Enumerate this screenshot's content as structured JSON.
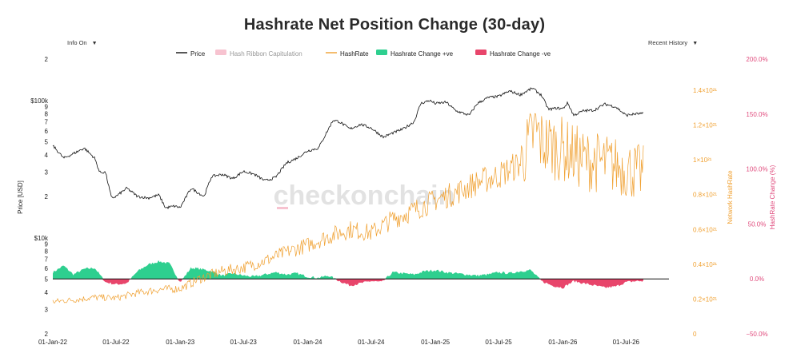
{
  "header": {
    "title": "Hashrate Net Position Change (30-day)",
    "info_label": "Info On",
    "history_label": "Recent History"
  },
  "watermark": "checkonchain",
  "colors": {
    "price": "#111111",
    "capitulation": "#f7c3d0",
    "hashrate": "#f0a030",
    "positive": "#2ecf8f",
    "negative": "#e8456b",
    "right_axis": "#e04a7c"
  },
  "chart_data": {
    "type": "line",
    "title": "Hashrate Net Position Change (30-day)",
    "legend": [
      {
        "name": "Price",
        "kind": "line",
        "color": "#111111"
      },
      {
        "name": "Hash Ribbon Capitulation",
        "kind": "box",
        "color": "#f7c3d0"
      },
      {
        "name": "HashRate",
        "kind": "line",
        "color": "#f0a030"
      },
      {
        "name": "Hashrate Change +ve",
        "kind": "box",
        "color": "#2ecf8f"
      },
      {
        "name": "Hashrate Change -ve",
        "kind": "box",
        "color": "#e8456b"
      }
    ],
    "legend_position": "top-center",
    "x_ticks": [
      "01-Jan-22",
      "01-Jul-22",
      "01-Jan-23",
      "01-Jul-23",
      "01-Jan-24",
      "01-Jul-24",
      "01-Jan-25",
      "01-Jul-25",
      "01-Jan-26",
      "01-Jul-26"
    ],
    "x_range": [
      "2022-01-01",
      "2026-09-30"
    ],
    "y_left": {
      "label": "Price [USD]",
      "scale": "log",
      "range": [
        2000,
        200000
      ],
      "ticks": [
        {
          "v": 2000,
          "t": "2"
        },
        {
          "v": 3000,
          "t": "3"
        },
        {
          "v": 4000,
          "t": "4"
        },
        {
          "v": 5000,
          "t": "5"
        },
        {
          "v": 6000,
          "t": "6"
        },
        {
          "v": 7000,
          "t": "7"
        },
        {
          "v": 8000,
          "t": "8"
        },
        {
          "v": 9000,
          "t": "9"
        },
        {
          "v": 10000,
          "t": "$10k"
        },
        {
          "v": 20000,
          "t": "2"
        },
        {
          "v": 30000,
          "t": "3"
        },
        {
          "v": 40000,
          "t": "4"
        },
        {
          "v": 50000,
          "t": "5"
        },
        {
          "v": 60000,
          "t": "6"
        },
        {
          "v": 70000,
          "t": "7"
        },
        {
          "v": 80000,
          "t": "8"
        },
        {
          "v": 90000,
          "t": "9"
        },
        {
          "v": 100000,
          "t": "$100k"
        },
        {
          "v": 200000,
          "t": "2"
        }
      ]
    },
    "y_hashrate": {
      "label": "Network HashRate",
      "range": [
        0,
        1.4e+21
      ],
      "ticks": [
        {
          "v": 0,
          "t": "0"
        },
        {
          "v": 2e+20,
          "t": "0.2×10²¹"
        },
        {
          "v": 4e+20,
          "t": "0.4×10²¹"
        },
        {
          "v": 6e+20,
          "t": "0.6×10²¹"
        },
        {
          "v": 8e+20,
          "t": "0.8×10²¹"
        },
        {
          "v": 1e+21,
          "t": "1×10²¹"
        },
        {
          "v": 1.2e+21,
          "t": "1.2×10²¹"
        },
        {
          "v": 1.4e+21,
          "t": "1.4×10²¹"
        }
      ]
    },
    "y_change": {
      "label": "HashRate Change (%)",
      "range": [
        -50,
        200
      ],
      "ticks": [
        {
          "v": -50,
          "t": "−50.0%"
        },
        {
          "v": 0,
          "t": "0.0%"
        },
        {
          "v": 50,
          "t": "50.0%"
        },
        {
          "v": 100,
          "t": "100.0%"
        },
        {
          "v": 150,
          "t": "150.0%"
        },
        {
          "v": 200,
          "t": "200.0%"
        }
      ]
    },
    "series": [
      {
        "name": "Price",
        "x": [
          "2022-01-01",
          "2022-02-01",
          "2022-03-01",
          "2022-04-01",
          "2022-05-01",
          "2022-05-15",
          "2022-06-01",
          "2022-06-18",
          "2022-07-01",
          "2022-08-01",
          "2022-09-01",
          "2022-10-01",
          "2022-11-01",
          "2022-11-20",
          "2022-12-15",
          "2023-01-01",
          "2023-02-01",
          "2023-03-10",
          "2023-04-01",
          "2023-05-01",
          "2023-06-01",
          "2023-07-01",
          "2023-08-01",
          "2023-09-01",
          "2023-10-01",
          "2023-11-01",
          "2023-12-01",
          "2024-01-01",
          "2024-02-01",
          "2024-03-14",
          "2024-04-01",
          "2024-05-01",
          "2024-06-01",
          "2024-07-01",
          "2024-08-05",
          "2024-09-01",
          "2024-10-01",
          "2024-11-01",
          "2024-11-20",
          "2024-12-15",
          "2025-01-01",
          "2025-02-01",
          "2025-03-01",
          "2025-04-08",
          "2025-05-01",
          "2025-06-01",
          "2025-07-01",
          "2025-08-01",
          "2025-09-01",
          "2025-10-06",
          "2025-11-01",
          "2025-11-21",
          "2025-12-15",
          "2026-01-01",
          "2026-01-15",
          "2026-02-01",
          "2026-03-01",
          "2026-04-01",
          "2026-05-01",
          "2026-06-01",
          "2026-07-01",
          "2026-08-01",
          "2026-08-20"
        ],
        "y": [
          47000,
          38000,
          41000,
          45000,
          38000,
          30000,
          30000,
          19500,
          20000,
          23000,
          20000,
          19500,
          20500,
          16500,
          17000,
          16600,
          23000,
          20000,
          28000,
          29000,
          27000,
          30500,
          29000,
          26000,
          27500,
          35000,
          38000,
          43000,
          45000,
          72000,
          70000,
          62000,
          67000,
          63000,
          54000,
          58000,
          62000,
          70000,
          95000,
          100000,
          95000,
          97000,
          84000,
          78000,
          95000,
          105000,
          107000,
          117000,
          110000,
          123000,
          109000,
          86000,
          88000,
          87000,
          96000,
          78000,
          84000,
          85000,
          94000,
          90000,
          78000,
          80000,
          80000
        ]
      },
      {
        "name": "HashRate",
        "x": [
          "2022-01-01",
          "2022-03-01",
          "2022-05-01",
          "2022-07-01",
          "2022-09-01",
          "2022-11-01",
          "2023-01-01",
          "2023-03-01",
          "2023-05-01",
          "2023-07-01",
          "2023-09-01",
          "2023-11-01",
          "2024-01-01",
          "2024-03-01",
          "2024-05-01",
          "2024-07-01",
          "2024-09-01",
          "2024-11-01",
          "2025-01-01",
          "2025-03-01",
          "2025-05-01",
          "2025-07-01",
          "2025-09-01",
          "2025-10-15",
          "2025-11-01",
          "2026-01-01",
          "2026-03-01",
          "2026-05-01",
          "2026-07-01",
          "2026-08-20"
        ],
        "y": [
          1.85e+20,
          1.95e+20,
          2.1e+20,
          2.05e+20,
          2.35e+20,
          2.55e+20,
          2.6e+20,
          3.2e+20,
          3.6e+20,
          3.8e+20,
          4.2e+20,
          4.7e+20,
          5.1e+20,
          5.6e+20,
          6e+20,
          5.8e+20,
          6.6e+20,
          7.1e+20,
          7.7e+20,
          8.1e+20,
          8.7e+20,
          9.1e+20,
          9.8e+20,
          1.17e+21,
          1.1e+21,
          1.06e+21,
          1e+21,
          9.8e+20,
          9.5e+20,
          9.2e+20
        ]
      },
      {
        "name": "HashRate Change",
        "x": [
          "2022-01-01",
          "2022-02-01",
          "2022-03-01",
          "2022-04-01",
          "2022-05-01",
          "2022-06-01",
          "2022-07-01",
          "2022-08-01",
          "2022-09-01",
          "2022-10-01",
          "2022-11-01",
          "2022-12-01",
          "2023-01-01",
          "2023-02-01",
          "2023-03-01",
          "2023-04-01",
          "2023-05-01",
          "2023-06-01",
          "2023-07-01",
          "2023-08-01",
          "2023-09-01",
          "2023-10-01",
          "2023-11-01",
          "2023-12-01",
          "2024-01-01",
          "2024-02-01",
          "2024-03-01",
          "2024-04-01",
          "2024-05-01",
          "2024-06-01",
          "2024-07-01",
          "2024-08-01",
          "2024-09-01",
          "2024-10-01",
          "2024-11-01",
          "2024-12-01",
          "2025-01-01",
          "2025-02-01",
          "2025-03-01",
          "2025-04-01",
          "2025-05-01",
          "2025-06-01",
          "2025-07-01",
          "2025-08-01",
          "2025-09-01",
          "2025-10-01",
          "2025-11-01",
          "2025-12-01",
          "2026-01-01",
          "2026-02-01",
          "2026-03-01",
          "2026-04-01",
          "2026-05-01",
          "2026-06-01",
          "2026-07-01",
          "2026-08-01",
          "2026-08-20"
        ],
        "y": [
          6,
          12,
          4,
          9,
          10,
          -3,
          -5,
          -4,
          7,
          13,
          16,
          14,
          -3,
          10,
          9,
          7,
          3,
          5,
          3,
          2,
          4,
          6,
          4,
          5,
          2,
          1,
          3,
          -2,
          -6,
          -4,
          -2,
          -3,
          6,
          5,
          4,
          7,
          8,
          6,
          5,
          4,
          3,
          4,
          6,
          5,
          7,
          8,
          -2,
          -6,
          -8,
          -2,
          -4,
          -6,
          -8,
          -7,
          -3,
          -2,
          -2
        ]
      }
    ]
  }
}
